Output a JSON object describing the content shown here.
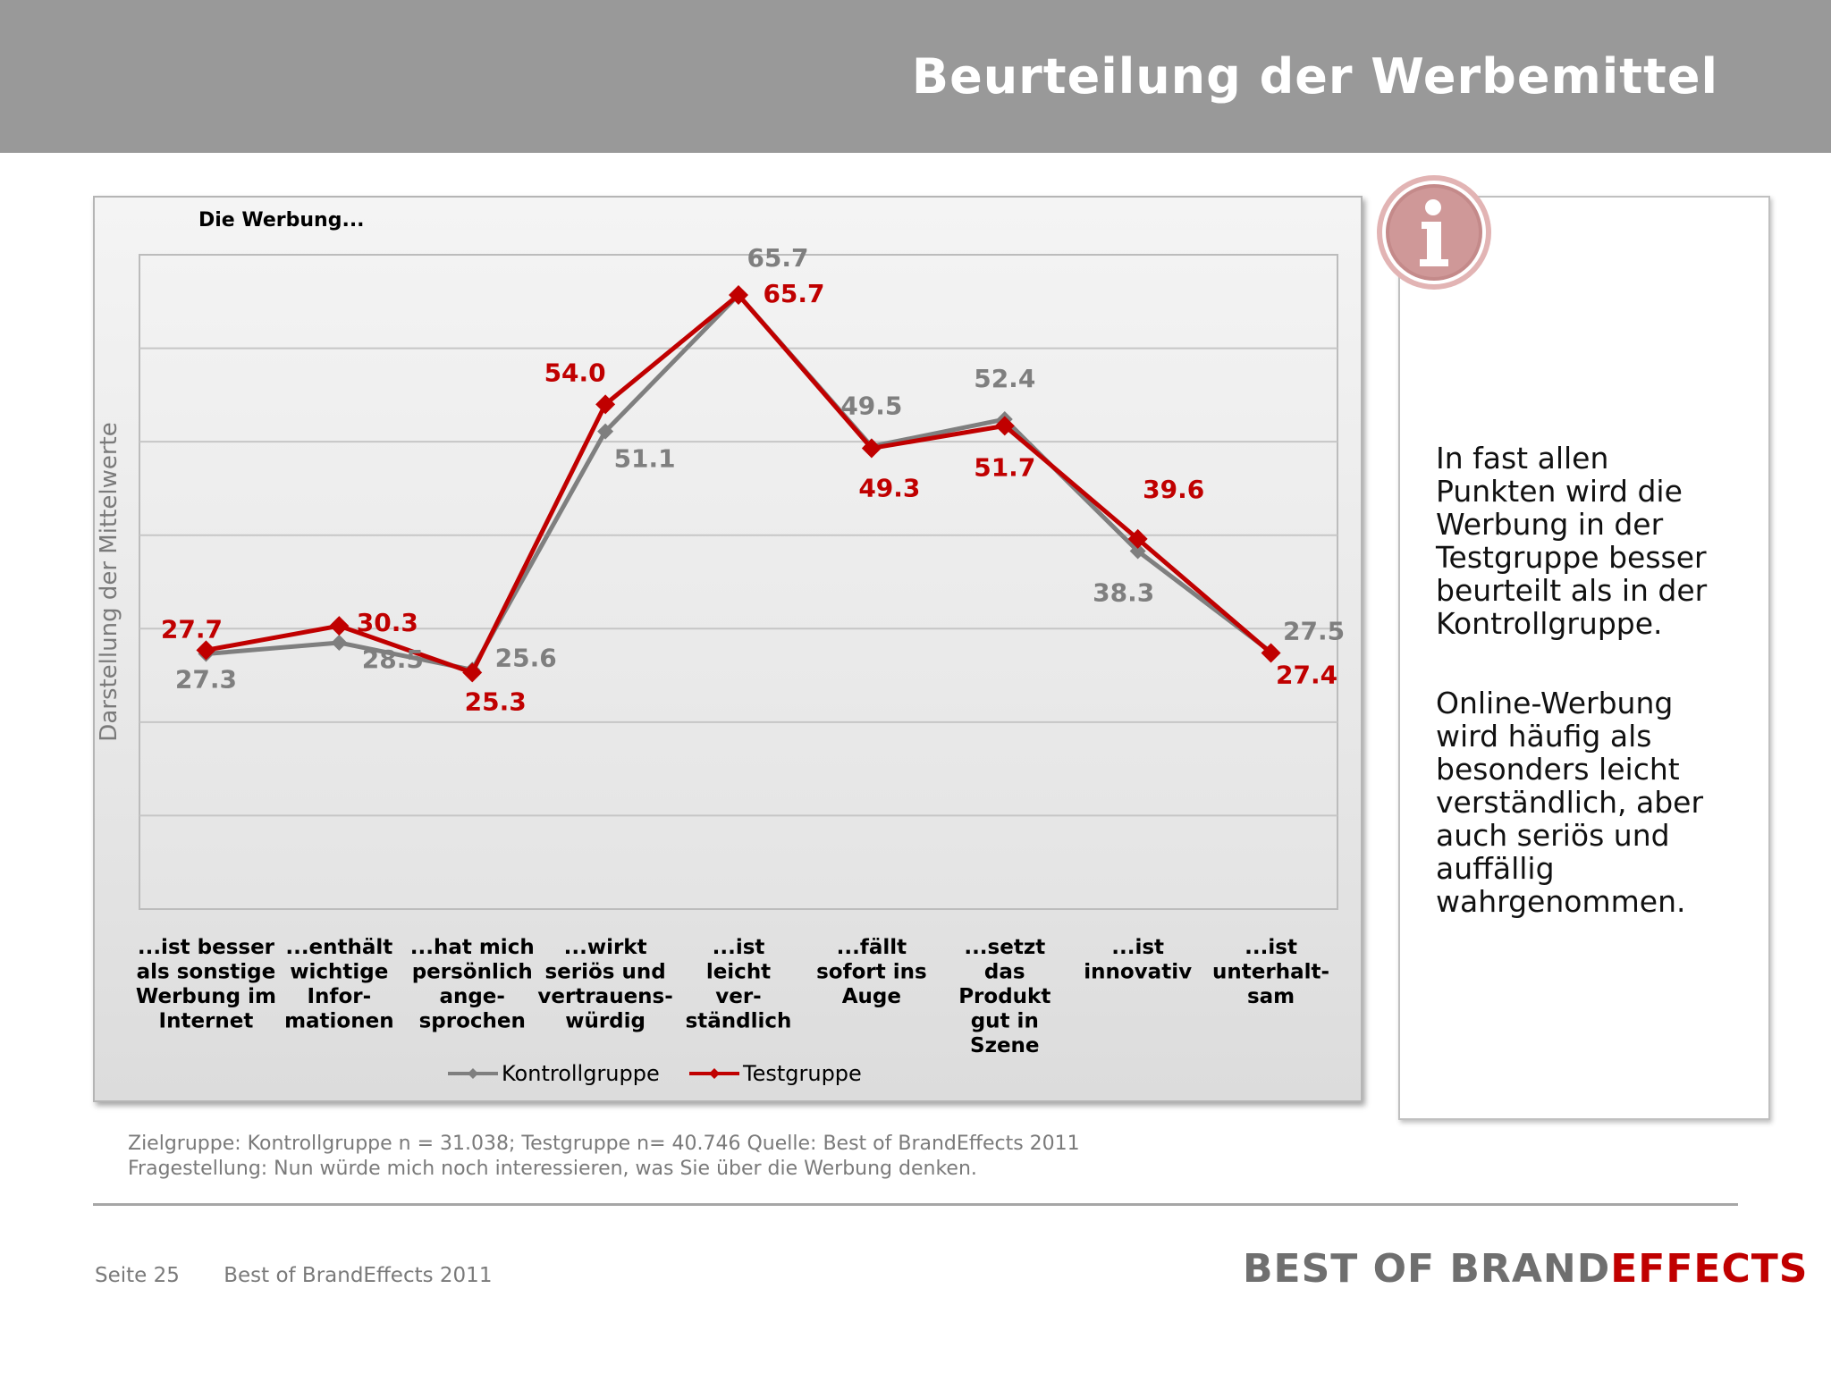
{
  "header": {
    "title": "Beurteilung der Werbemittel"
  },
  "colors": {
    "kontroll": "#7f7f7f",
    "test": "#c00000",
    "header_bg": "#999999"
  },
  "chart_data": {
    "type": "line",
    "title": "Die Werbung...",
    "ylabel": "Darstellung der Mittelwerte",
    "xlabel": "",
    "ylim": [
      0,
      70
    ],
    "grid": true,
    "legend": "bottom",
    "categories": [
      [
        "...ist besser",
        "als sonstige",
        "Werbung im",
        "Internet"
      ],
      [
        "...enthält",
        "wichtige",
        "Infor-",
        "mationen"
      ],
      [
        "...hat mich",
        "persönlich",
        "ange-",
        "sprochen"
      ],
      [
        "...wirkt",
        "seriös und",
        "vertrauens-",
        "würdig"
      ],
      [
        "...ist",
        "leicht",
        "ver-",
        "ständlich"
      ],
      [
        "...fällt",
        "sofort ins",
        "Auge"
      ],
      [
        "...setzt",
        "das",
        "Produkt",
        "gut in",
        "Szene"
      ],
      [
        "...ist",
        "innovativ"
      ],
      [
        "...ist",
        "unterhalt-",
        "sam"
      ]
    ],
    "series": [
      {
        "name": "Kontrollgruppe",
        "values": [
          27.3,
          28.5,
          25.6,
          51.1,
          65.7,
          49.5,
          52.4,
          38.3,
          27.5
        ],
        "labels": [
          "27.3",
          "28.5",
          "25.6",
          "51.1",
          "65.7",
          "49.5",
          "52.4",
          "38.3",
          "27.5"
        ]
      },
      {
        "name": "Testgruppe",
        "values": [
          27.7,
          30.3,
          25.3,
          54.0,
          65.7,
          49.3,
          51.7,
          39.6,
          27.4
        ],
        "labels": [
          "27.7",
          "30.3",
          "25.3",
          "54.0",
          "65.7",
          "49.3",
          "51.7",
          "39.6",
          "27.4"
        ]
      }
    ]
  },
  "info": {
    "paragraphs": [
      [
        "In fast allen",
        "Punkten wird die",
        "Werbung in der",
        "Testgruppe besser",
        "beurteilt als in der",
        "Kontrollgruppe."
      ],
      [
        "Online-Werbung",
        "wird häufig als",
        "besonders leicht",
        "verständlich, aber",
        "auch seriös und",
        "auffällig",
        "wahrgenommen."
      ]
    ]
  },
  "footnote": {
    "line1": "Zielgruppe: Kontrollgruppe n = 31.038; Testgruppe n= 40.746 Quelle: Best of BrandEffects 2011",
    "line2": "Fragestellung: Nun würde mich noch interessieren, was Sie über die Werbung denken."
  },
  "footer": {
    "page": "Seite 25",
    "source": "Best of BrandEffects 2011",
    "logo_part1": "BEST OF BRAND",
    "logo_part2": "EFFECTS"
  }
}
